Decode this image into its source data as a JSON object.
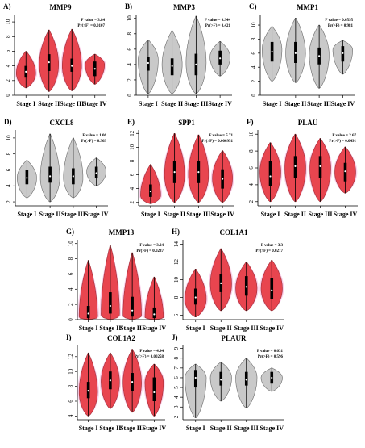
{
  "colors": {
    "significant_fill": "#e8454f",
    "significant_stroke": "#9e3038",
    "nonsignificant_fill": "#c9c9c9",
    "nonsignificant_stroke": "#6b6b6b",
    "box": "#000000",
    "highlight": "#f8a8d8"
  },
  "chart_data": [
    {
      "panel": "A)",
      "title": "MMP9",
      "type": "violin",
      "significant": true,
      "stat_lines": [
        "F value = 3.84",
        "Pr(>F) = 0.0107"
      ],
      "categories": [
        "Stage I",
        "Stage II",
        "Stage III",
        "Stage IV"
      ],
      "yticks": [
        0,
        2,
        4,
        6,
        8,
        10
      ],
      "ylim": [
        0,
        11
      ],
      "violins": [
        {
          "min": 1.0,
          "q1": 2.4,
          "median": 3.2,
          "q3": 4.0,
          "max": 6.0,
          "peak": 3.0
        },
        {
          "min": 0.5,
          "q1": 3.3,
          "median": 4.5,
          "q3": 5.6,
          "max": 8.9,
          "peak": 4.2
        },
        {
          "min": 0.6,
          "q1": 3.2,
          "median": 4.0,
          "q3": 5.0,
          "max": 9.0,
          "peak": 4.0
        },
        {
          "min": 1.5,
          "q1": 2.6,
          "median": 3.6,
          "q3": 4.6,
          "max": 5.6,
          "peak": 4.2
        }
      ]
    },
    {
      "panel": "B)",
      "title": "MMP3",
      "type": "violin",
      "significant": false,
      "stat_lines": [
        "F value = 0.944",
        "Pr(>F) = 0.421"
      ],
      "categories": [
        "Stage I",
        "Stage II",
        "Stage III",
        "Stage IV"
      ],
      "yticks": [
        0,
        2,
        4,
        6,
        8,
        10
      ],
      "ylim": [
        0,
        10.5
      ],
      "violins": [
        {
          "min": 0.2,
          "q1": 3.2,
          "median": 4.2,
          "q3": 5.0,
          "max": 7.2,
          "peak": 4.6
        },
        {
          "min": 0.2,
          "q1": 2.6,
          "median": 3.8,
          "q3": 4.8,
          "max": 8.4,
          "peak": 4.0
        },
        {
          "min": 0.2,
          "q1": 2.6,
          "median": 4.0,
          "q3": 5.4,
          "max": 10.3,
          "peak": 4.2
        },
        {
          "min": 2.5,
          "q1": 4.0,
          "median": 4.8,
          "q3": 5.8,
          "max": 7.0,
          "peak": 5.0
        }
      ]
    },
    {
      "panel": "C)",
      "title": "MMP1",
      "type": "violin",
      "significant": false,
      "stat_lines": [
        "F value = 0.0595",
        "Pr(>F) = 0.981"
      ],
      "categories": [
        "Stage I",
        "Stage II",
        "Stage III",
        "Stage IV"
      ],
      "yticks": [
        0,
        2,
        4,
        6,
        8,
        10
      ],
      "ylim": [
        0,
        11.5
      ],
      "violins": [
        {
          "min": 2.0,
          "q1": 4.8,
          "median": 6.2,
          "q3": 7.6,
          "max": 9.8,
          "peak": 6.5
        },
        {
          "min": 1.8,
          "q1": 4.6,
          "median": 6.0,
          "q3": 7.6,
          "max": 11.0,
          "peak": 6.0
        },
        {
          "min": 1.0,
          "q1": 4.4,
          "median": 5.6,
          "q3": 6.8,
          "max": 10.0,
          "peak": 5.8
        },
        {
          "min": 3.0,
          "q1": 4.8,
          "median": 6.0,
          "q3": 7.0,
          "max": 7.8,
          "peak": 6.5
        }
      ]
    },
    {
      "panel": "D)",
      "title": "CXCL8",
      "type": "violin",
      "significant": false,
      "stat_lines": [
        "F value = 1.06",
        "Pr(>F) = 0.369"
      ],
      "categories": [
        "Stage I",
        "Stage II",
        "Stage III",
        "Stage IV"
      ],
      "yticks": [
        2,
        4,
        6,
        8,
        10
      ],
      "ylim": [
        1.5,
        11.0
      ],
      "violins": [
        {
          "min": 2.5,
          "q1": 4.2,
          "median": 5.0,
          "q3": 6.0,
          "max": 7.2,
          "peak": 5.0
        },
        {
          "min": 2.0,
          "q1": 4.4,
          "median": 5.2,
          "q3": 6.4,
          "max": 10.5,
          "peak": 5.0
        },
        {
          "min": 2.5,
          "q1": 4.2,
          "median": 5.2,
          "q3": 6.2,
          "max": 10.0,
          "peak": 5.0
        },
        {
          "min": 4.0,
          "q1": 5.0,
          "median": 5.6,
          "q3": 6.4,
          "max": 7.5,
          "peak": 5.8
        }
      ]
    },
    {
      "panel": "E)",
      "title": "SPP1",
      "type": "violin",
      "significant": true,
      "stat_lines": [
        "F value = 5.71",
        "Pr(>F) = 0.000951"
      ],
      "categories": [
        "Stage I",
        "Stage II",
        "Stage III",
        "Stage IV"
      ],
      "yticks": [
        2,
        4,
        6,
        8,
        10,
        12
      ],
      "ylim": [
        1.5,
        12.5
      ],
      "violins": [
        {
          "min": 1.8,
          "q1": 2.8,
          "median": 3.6,
          "q3": 4.6,
          "max": 7.5,
          "peak": 3.0
        },
        {
          "min": 2.0,
          "q1": 4.8,
          "median": 6.4,
          "q3": 8.0,
          "max": 12.0,
          "peak": 6.0
        },
        {
          "min": 2.0,
          "q1": 4.8,
          "median": 6.4,
          "q3": 8.0,
          "max": 11.8,
          "peak": 6.0
        },
        {
          "min": 2.0,
          "q1": 4.0,
          "median": 5.4,
          "q3": 6.8,
          "max": 9.5,
          "peak": 5.5
        }
      ]
    },
    {
      "panel": "F)",
      "title": "PLAU",
      "type": "violin",
      "significant": true,
      "stat_lines": [
        "F value = 2.67",
        "Pr(>F) = 0.0491"
      ],
      "categories": [
        "Stage I",
        "Stage II",
        "Stage III",
        "Stage IV"
      ],
      "yticks": [
        2,
        4,
        6,
        8,
        10
      ],
      "ylim": [
        1.5,
        10.5
      ],
      "violins": [
        {
          "min": 2.0,
          "q1": 3.8,
          "median": 5.0,
          "q3": 6.8,
          "max": 9.0,
          "peak": 5.5
        },
        {
          "min": 2.0,
          "q1": 4.8,
          "median": 6.2,
          "q3": 7.4,
          "max": 10.0,
          "peak": 6.0
        },
        {
          "min": 2.0,
          "q1": 4.8,
          "median": 6.2,
          "q3": 7.4,
          "max": 9.5,
          "peak": 6.0
        },
        {
          "min": 3.0,
          "q1": 4.4,
          "median": 5.6,
          "q3": 6.6,
          "max": 8.5,
          "peak": 5.5
        }
      ]
    },
    {
      "panel": "G)",
      "title": "MMP13",
      "type": "violin",
      "significant": true,
      "stat_lines": [
        "F value = 3.24",
        "Pr(>F) = 0.0237"
      ],
      "categories": [
        "Stage I",
        "Stage II",
        "Stage III",
        "Stage IV"
      ],
      "yticks": [
        0,
        2,
        4,
        6,
        8,
        10
      ],
      "ylim": [
        0,
        10.5
      ],
      "violins": [
        {
          "min": 0.0,
          "q1": 0.2,
          "median": 0.8,
          "q3": 1.8,
          "max": 7.8,
          "peak": 0.3
        },
        {
          "min": 0.0,
          "q1": 0.8,
          "median": 1.8,
          "q3": 3.6,
          "max": 9.8,
          "peak": 0.6
        },
        {
          "min": 0.0,
          "q1": 0.4,
          "median": 1.2,
          "q3": 3.0,
          "max": 8.8,
          "peak": 0.5
        },
        {
          "min": 0.0,
          "q1": 0.2,
          "median": 0.7,
          "q3": 1.6,
          "max": 5.6,
          "peak": 0.3
        }
      ]
    },
    {
      "panel": "H)",
      "title": "COL1A1",
      "type": "violin",
      "significant": true,
      "stat_lines": [
        "F value = 3.3",
        "Pr(>F) = 0.0217"
      ],
      "categories": [
        "Stage I",
        "Stage II",
        "Stage III",
        "Stage IV"
      ],
      "yticks": [
        6,
        8,
        10,
        12,
        14
      ],
      "ylim": [
        5.5,
        14.5
      ],
      "violins": [
        {
          "min": 5.8,
          "q1": 7.2,
          "median": 8.0,
          "q3": 9.0,
          "max": 11.2,
          "peak": 7.8
        },
        {
          "min": 6.5,
          "q1": 8.6,
          "median": 9.6,
          "q3": 10.6,
          "max": 13.5,
          "peak": 9.5
        },
        {
          "min": 6.5,
          "q1": 8.2,
          "median": 9.2,
          "q3": 10.4,
          "max": 12.0,
          "peak": 9.0
        },
        {
          "min": 6.5,
          "q1": 7.8,
          "median": 8.8,
          "q3": 10.2,
          "max": 12.2,
          "peak": 9.0
        }
      ]
    },
    {
      "panel": "I)",
      "title": "COL1A2",
      "type": "violin",
      "significant": true,
      "stat_lines": [
        "F value = 4.94",
        "Pr(>F) = 0.00258"
      ],
      "categories": [
        "Stage I",
        "Stage II",
        "Stage III",
        "Stage IV"
      ],
      "yticks": [
        4,
        6,
        8,
        10,
        12
      ],
      "ylim": [
        3.5,
        13.5
      ],
      "violins": [
        {
          "min": 4.0,
          "q1": 6.4,
          "median": 7.4,
          "q3": 8.6,
          "max": 12.5,
          "peak": 7.2
        },
        {
          "min": 5.0,
          "q1": 7.6,
          "median": 8.8,
          "q3": 10.0,
          "max": 12.5,
          "peak": 8.6
        },
        {
          "min": 4.5,
          "q1": 7.4,
          "median": 8.6,
          "q3": 9.8,
          "max": 13.0,
          "peak": 8.5
        },
        {
          "min": 4.0,
          "q1": 6.0,
          "median": 7.2,
          "q3": 9.2,
          "max": 11.0,
          "peak": 8.5
        }
      ]
    },
    {
      "panel": "J)",
      "title": "PLAUR",
      "type": "violin",
      "significant": false,
      "stat_lines": [
        "F value = 0.631",
        "Pr(>F) = 0.596"
      ],
      "categories": [
        "Stage I",
        "Stage II",
        "Stage III",
        "Stage IV"
      ],
      "yticks": [
        2,
        3,
        4,
        5,
        6,
        7,
        8,
        9
      ],
      "ylim": [
        1.7,
        9.3
      ],
      "violins": [
        {
          "min": 1.9,
          "q1": 5.0,
          "median": 6.0,
          "q3": 6.8,
          "max": 7.4,
          "peak": 6.0
        },
        {
          "min": 3.6,
          "q1": 5.2,
          "median": 5.8,
          "q3": 6.6,
          "max": 7.6,
          "peak": 6.0
        },
        {
          "min": 2.9,
          "q1": 5.2,
          "median": 5.8,
          "q3": 6.6,
          "max": 8.0,
          "peak": 6.0
        },
        {
          "min": 4.6,
          "q1": 5.4,
          "median": 6.0,
          "q3": 6.6,
          "max": 7.0,
          "peak": 6.0
        }
      ]
    }
  ]
}
